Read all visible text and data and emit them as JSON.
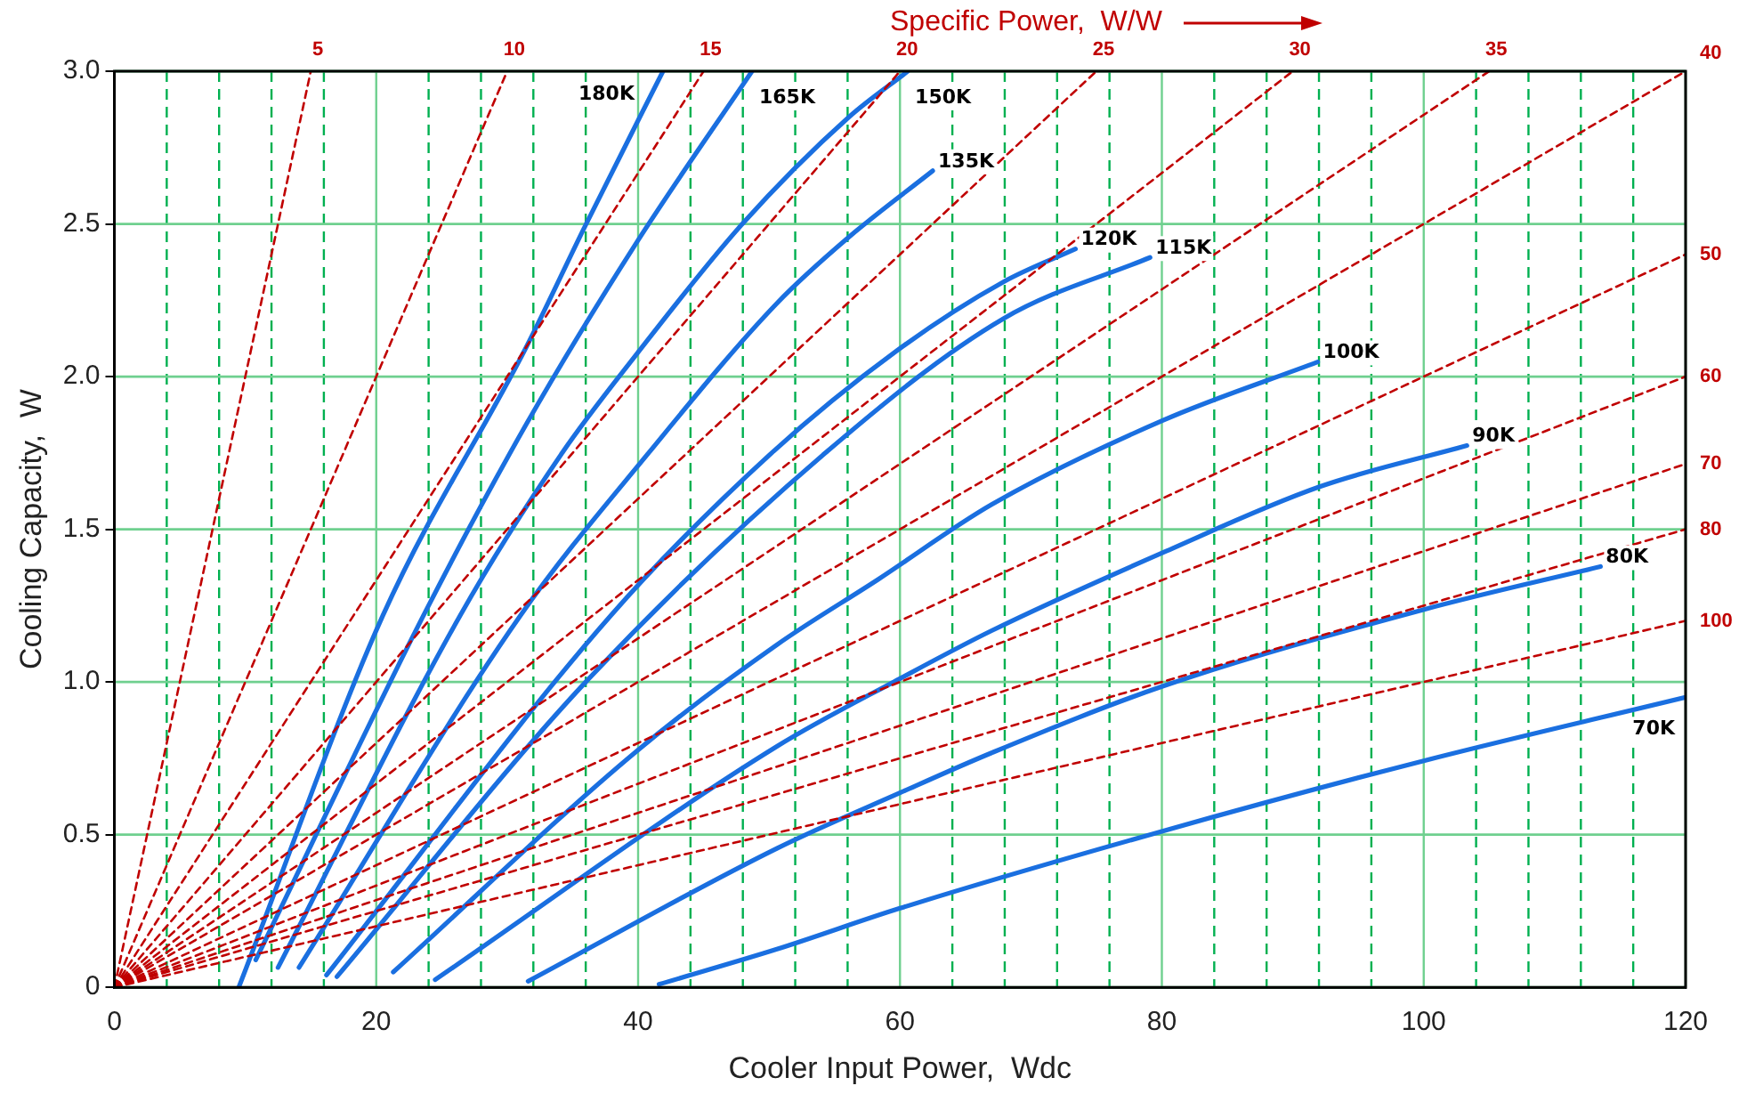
{
  "chart_data": {
    "type": "line",
    "xlabel": "Cooler Input Power,  Wdc",
    "ylabel": "Cooling Capacity,  W",
    "annotations": [
      "Specific Power,  W/W"
    ],
    "xlim": [
      0,
      120
    ],
    "ylim": [
      0,
      3
    ],
    "xticks": [
      0,
      {
        "value": 4,
        "label": null
      },
      {
        "value": 8,
        "label": null
      },
      {
        "value": 12,
        "label": null
      },
      {
        "value": 16,
        "label": null
      },
      20,
      {
        "value": 24,
        "label": null
      },
      {
        "value": 28,
        "label": null
      },
      {
        "value": 32,
        "label": null
      },
      {
        "value": 36,
        "label": null
      },
      40,
      {
        "value": 44,
        "label": null
      },
      {
        "value": 48,
        "label": null
      },
      {
        "value": 52,
        "label": null
      },
      {
        "value": 56,
        "label": null
      },
      60,
      {
        "value": 64,
        "label": null
      },
      {
        "value": 68,
        "label": null
      },
      {
        "value": 72,
        "label": null
      },
      {
        "value": 76,
        "label": null
      },
      80,
      {
        "value": 84,
        "label": null
      },
      {
        "value": 88,
        "label": null
      },
      {
        "value": 92,
        "label": null
      },
      {
        "value": 96,
        "label": null
      },
      100,
      {
        "value": 104,
        "label": null
      },
      {
        "value": 108,
        "label": null
      },
      {
        "value": 112,
        "label": null
      },
      {
        "value": 116,
        "label": null
      },
      120
    ],
    "yticks": [
      0,
      0.5,
      {
        "value": 1,
        "label": "1.0"
      },
      1.5,
      {
        "value": 2,
        "label": "2.0"
      },
      2.5,
      {
        "value": 3,
        "label": "3.0"
      }
    ],
    "grid": true,
    "marker": "none",
    "line_style": "solid",
    "series": [
      {
        "name": "5",
        "color": "#c00000",
        "line_style": "dashed",
        "x": [
          0,
          15
        ],
        "values": [
          0,
          3
        ]
      },
      {
        "name": "10",
        "color": "#c00000",
        "line_style": "dashed",
        "x": [
          0,
          30
        ],
        "values": [
          0,
          3
        ]
      },
      {
        "name": "15",
        "color": "#c00000",
        "line_style": "dashed",
        "x": [
          0,
          45
        ],
        "values": [
          0,
          3
        ]
      },
      {
        "name": "20",
        "color": "#c00000",
        "line_style": "dashed",
        "x": [
          0,
          60
        ],
        "values": [
          0,
          3
        ]
      },
      {
        "name": "25",
        "color": "#c00000",
        "line_style": "dashed",
        "x": [
          0,
          75
        ],
        "values": [
          0,
          3
        ]
      },
      {
        "name": "30",
        "color": "#c00000",
        "line_style": "dashed",
        "x": [
          0,
          90
        ],
        "values": [
          0,
          3
        ]
      },
      {
        "name": "35",
        "color": "#c00000",
        "line_style": "dashed",
        "x": [
          0,
          105
        ],
        "values": [
          0,
          3
        ]
      },
      {
        "name": "40",
        "color": "#c00000",
        "line_style": "dashed",
        "x": [
          0,
          120
        ],
        "values": [
          0,
          3
        ]
      },
      {
        "name": "50",
        "color": "#c00000",
        "line_style": "dashed",
        "x": [
          0,
          120
        ],
        "values": [
          0,
          2.4
        ]
      },
      {
        "name": "60",
        "color": "#c00000",
        "line_style": "dashed",
        "x": [
          0,
          120
        ],
        "values": [
          0,
          2
        ]
      },
      {
        "name": "70",
        "color": "#c00000",
        "line_style": "dashed",
        "x": [
          0,
          120
        ],
        "values": [
          0,
          1.714
        ]
      },
      {
        "name": "80",
        "color": "#c00000",
        "line_style": "dashed",
        "x": [
          0,
          120
        ],
        "values": [
          0,
          1.5
        ]
      },
      {
        "name": "100",
        "color": "#c00000",
        "line_style": "dashed",
        "x": [
          0,
          120
        ],
        "values": [
          0,
          1.2
        ]
      },
      {
        "name": "180K",
        "color": "#1a6fe0",
        "x": [
          9.5,
          20.5,
          31.5,
          36,
          41.9
        ],
        "values": [
          0,
          1.217,
          2.1,
          2.497,
          3
        ]
      },
      {
        "name": "165K",
        "color": "#1a6fe0",
        "x": [
          10.8,
          23.6,
          31.5,
          39.9,
          48.7
        ],
        "values": [
          0.09,
          1.217,
          1.847,
          2.44,
          3
        ]
      },
      {
        "name": "150K",
        "color": "#1a6fe0",
        "x": [
          12.5,
          26.4,
          34.2,
          39.7,
          47.9,
          56.1,
          60.6
        ],
        "values": [
          0.065,
          1.217,
          1.75,
          2.063,
          2.497,
          2.85,
          3
        ]
      },
      {
        "name": "135K",
        "color": "#1a6fe0",
        "x": [
          14.1,
          31,
          40.8,
          50.6,
          56.1,
          62.5
        ],
        "values": [
          0.065,
          1.217,
          1.75,
          2.24,
          2.457,
          2.674
        ]
      },
      {
        "name": "120K",
        "color": "#1a6fe0",
        "x": [
          16.2,
          37.9,
          50.2,
          59.7,
          67.9,
          73.4
        ],
        "values": [
          0.04,
          1.217,
          1.75,
          2.083,
          2.31,
          2.418
        ]
      },
      {
        "name": "115K",
        "color": "#1a6fe0",
        "x": [
          17,
          36,
          54.3,
          67.9,
          79.1
        ],
        "values": [
          0.035,
          1,
          1.75,
          2.19,
          2.39
        ]
      },
      {
        "name": "100K",
        "color": "#1a6fe0",
        "x": [
          21.3,
          39.9,
          50.6,
          58.3,
          67,
          80.1,
          91.9
        ],
        "values": [
          0.05,
          0.774,
          1.122,
          1.335,
          1.581,
          1.857,
          2.048
        ]
      },
      {
        "name": "90K",
        "color": "#1a6fe0",
        "x": [
          24.5,
          50.6,
          60,
          67,
          80.1,
          92.1,
          103.3
        ],
        "values": [
          0.025,
          0.789,
          1.011,
          1.168,
          1.424,
          1.64,
          1.774
        ]
      },
      {
        "name": "80K",
        "color": "#1a6fe0",
        "x": [
          31.6,
          50.6,
          60,
          67,
          80,
          99.9,
          113.5
        ],
        "values": [
          0.02,
          0.455,
          0.637,
          0.768,
          0.985,
          1.236,
          1.378
        ]
      },
      {
        "name": "70K",
        "color": "#1a6fe0",
        "x": [
          41.6,
          50.6,
          60,
          80,
          100,
          120
        ],
        "values": [
          0.01,
          0.125,
          0.259,
          0.511,
          0.742,
          0.95
        ]
      }
    ]
  }
}
